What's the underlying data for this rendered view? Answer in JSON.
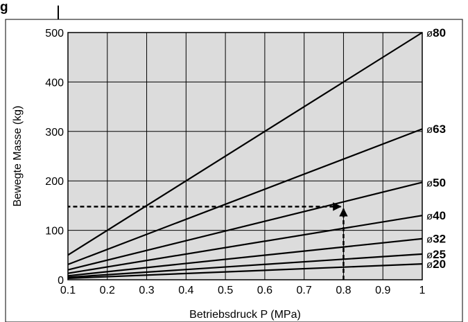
{
  "heading": "g",
  "chart_data": {
    "type": "line",
    "title": "",
    "xlabel": "Betriebsdruck P (MPa)",
    "ylabel": "Bewegte Masse (kg)",
    "xlim": [
      0.1,
      1
    ],
    "ylim": [
      0,
      500
    ],
    "x_ticks": [
      "0.1",
      "0.2",
      "0.3",
      "0.4",
      "0.5",
      "0.6",
      "0.7",
      "0.8",
      "0.9",
      "1"
    ],
    "y_ticks": [
      "0",
      "100",
      "200",
      "300",
      "400",
      "500"
    ],
    "grid": true,
    "series": [
      {
        "name": "80",
        "x": [
          0.1,
          1
        ],
        "values": [
          50,
          500
        ]
      },
      {
        "name": "63",
        "x": [
          0.1,
          1
        ],
        "values": [
          31,
          305
        ]
      },
      {
        "name": "50",
        "x": [
          0.1,
          1
        ],
        "values": [
          20,
          197
        ]
      },
      {
        "name": "40",
        "x": [
          0.1,
          1
        ],
        "values": [
          13,
          130
        ]
      },
      {
        "name": "32",
        "x": [
          0.1,
          1
        ],
        "values": [
          8,
          83
        ]
      },
      {
        "name": "25",
        "x": [
          0.1,
          1
        ],
        "values": [
          5,
          52
        ]
      },
      {
        "name": "20",
        "x": [
          0.1,
          1
        ],
        "values": [
          3,
          32
        ]
      }
    ],
    "series_label_prefix": "ø",
    "annotation": {
      "x": 0.8,
      "y": 148,
      "style": "dashed-arrows"
    },
    "colors": {
      "plot_background": "#dcdcdc",
      "lines": "#000000",
      "grid": "#000000"
    }
  }
}
